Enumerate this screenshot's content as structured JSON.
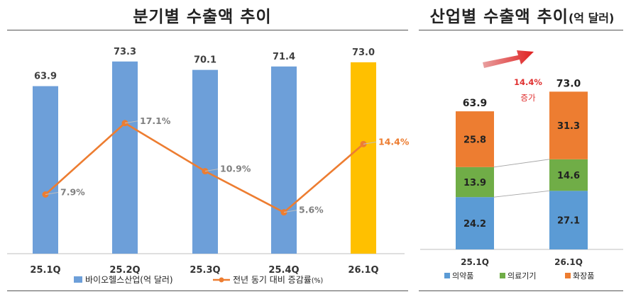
{
  "left_chart": {
    "title": "분기별 수출액 추이",
    "chart_data": {
      "type": "bar+line",
      "categories": [
        "25.1Q",
        "25.2Q",
        "25.3Q",
        "25.4Q",
        "26.1Q"
      ],
      "series": [
        {
          "name": "바이오헬스산업(억 달러)",
          "type": "bar",
          "values": [
            63.9,
            73.3,
            70.1,
            71.4,
            73.0
          ],
          "labels": [
            "63.9",
            "73.3",
            "70.1",
            "71.4",
            "73.0"
          ]
        },
        {
          "name": "전년 동기 대비 증감률(%)",
          "type": "line",
          "values": [
            7.9,
            17.1,
            10.9,
            5.6,
            14.4
          ],
          "labels": [
            "7.9%",
            "17.1%",
            "10.9%",
            "5.6%",
            "14.4%"
          ]
        }
      ],
      "legend": {
        "bar": "바이오헬스산업(억 달러)",
        "line_main": "전년 동기 대비 증감률",
        "line_unit": "(%)"
      },
      "colors": {
        "bar": "#6d9fd9",
        "bar_highlight": "#ffc000",
        "line": "#ed7d31",
        "label": "#808080",
        "label_highlight": "#ed7d31"
      }
    }
  },
  "right_chart": {
    "title_main": "산업별 수출액 추이",
    "title_unit": "(억 달러)",
    "chart_data": {
      "type": "stacked-bar",
      "categories": [
        "25.1Q",
        "26.1Q"
      ],
      "totals": [
        "63.9",
        "73.0"
      ],
      "series": [
        {
          "name": "의약품",
          "values": [
            24.2,
            27.1
          ],
          "labels": [
            "24.2",
            "27.1"
          ],
          "color": "#5b9bd5"
        },
        {
          "name": "의료기기",
          "values": [
            13.9,
            14.6
          ],
          "labels": [
            "13.9",
            "14.6"
          ],
          "color": "#70ad47"
        },
        {
          "name": "화장품",
          "values": [
            25.8,
            31.3
          ],
          "labels": [
            "25.8",
            "31.3"
          ],
          "color": "#ed7d31"
        }
      ],
      "annotation": {
        "pct": "14.4%",
        "word": "증가",
        "color": "#e03030"
      }
    }
  }
}
